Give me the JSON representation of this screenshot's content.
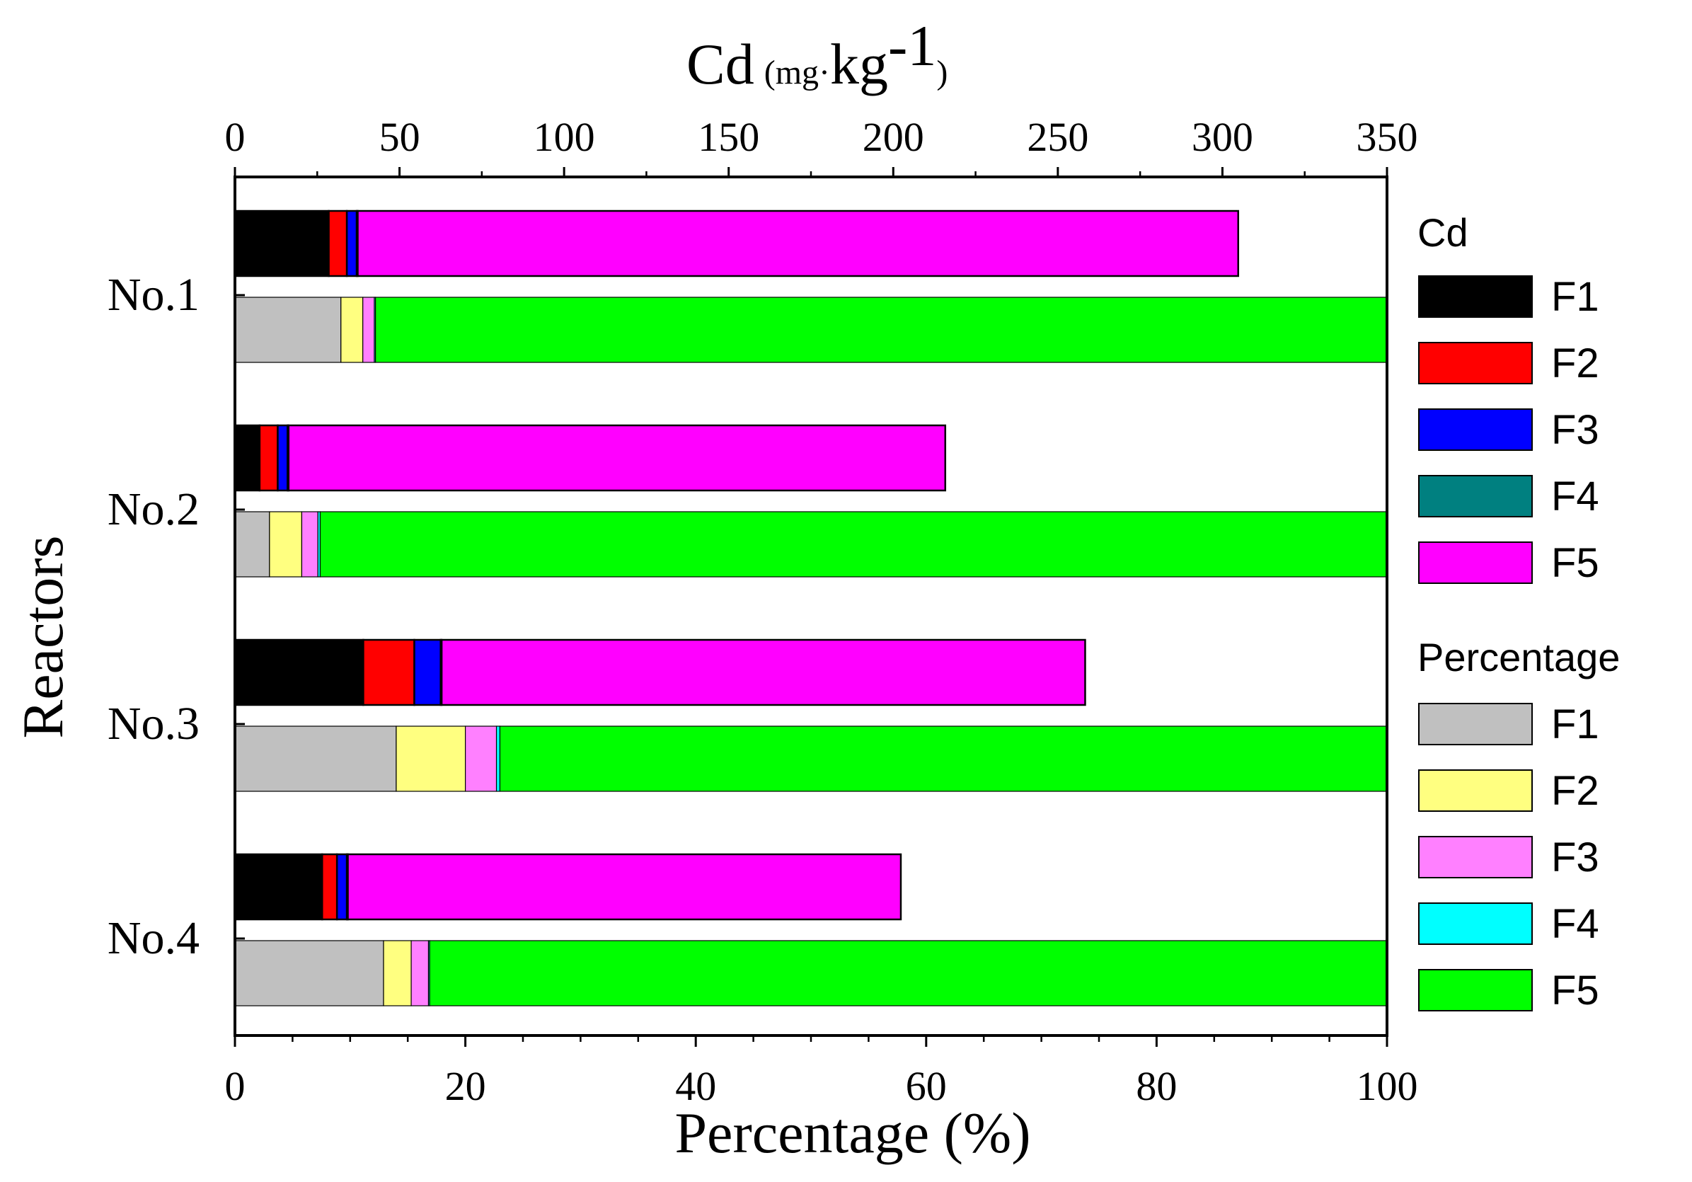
{
  "chart_data": {
    "type": "bar",
    "orientation": "horizontal",
    "stacked": true,
    "top_axis": {
      "label_main": "Cd",
      "label_unit_open": "(mg",
      "label_unit_dot": "·",
      "label_unit_mid": "kg",
      "label_unit_exp": "-1",
      "label_unit_close": ")",
      "range": [
        0,
        350
      ],
      "ticks": [
        "0",
        "50",
        "100",
        "150",
        "200",
        "250",
        "300",
        "350"
      ],
      "tick_values": [
        0,
        50,
        100,
        150,
        200,
        250,
        300,
        350
      ]
    },
    "bottom_axis": {
      "label": "Percentage (%)",
      "range": [
        0,
        100
      ],
      "ticks": [
        "0",
        "20",
        "40",
        "60",
        "80",
        "100"
      ],
      "tick_values": [
        0,
        20,
        40,
        60,
        80,
        100
      ],
      "minor_step": 5
    },
    "ylabel": "Reactors",
    "categories": [
      "No.1",
      "No.2",
      "No.3",
      "No.4"
    ],
    "cd_series": [
      {
        "name": "F1",
        "color": "#000000",
        "values": [
          28.5,
          7.5,
          39.0,
          26.5
        ]
      },
      {
        "name": "F2",
        "color": "#ff0000",
        "values": [
          5.5,
          5.5,
          15.5,
          4.5
        ]
      },
      {
        "name": "F3",
        "color": "#0000ff",
        "values": [
          3.0,
          3.0,
          8.0,
          3.0
        ]
      },
      {
        "name": "F4",
        "color": "#008080",
        "values": [
          0.3,
          0.3,
          0.3,
          0.3
        ]
      },
      {
        "name": "F5",
        "color": "#ff00ff",
        "values": [
          267.5,
          199.5,
          195.5,
          168.0
        ]
      }
    ],
    "percentage_series": [
      {
        "name": "F1",
        "color": "#c0c0c0",
        "values": [
          9.2,
          3.0,
          14.0,
          12.9
        ]
      },
      {
        "name": "F2",
        "color": "#ffff80",
        "values": [
          1.9,
          2.8,
          6.0,
          2.4
        ]
      },
      {
        "name": "F3",
        "color": "#ff80ff",
        "values": [
          1.0,
          1.4,
          2.7,
          1.5
        ]
      },
      {
        "name": "F4",
        "color": "#00ffff",
        "values": [
          0.1,
          0.2,
          0.3,
          0.1
        ]
      },
      {
        "name": "F5",
        "color": "#00ff00",
        "values": [
          87.8,
          92.6,
          77.0,
          83.1
        ]
      }
    ],
    "legend": {
      "position": "right",
      "cd_title": "Cd",
      "percentage_title": "Percentage"
    }
  }
}
